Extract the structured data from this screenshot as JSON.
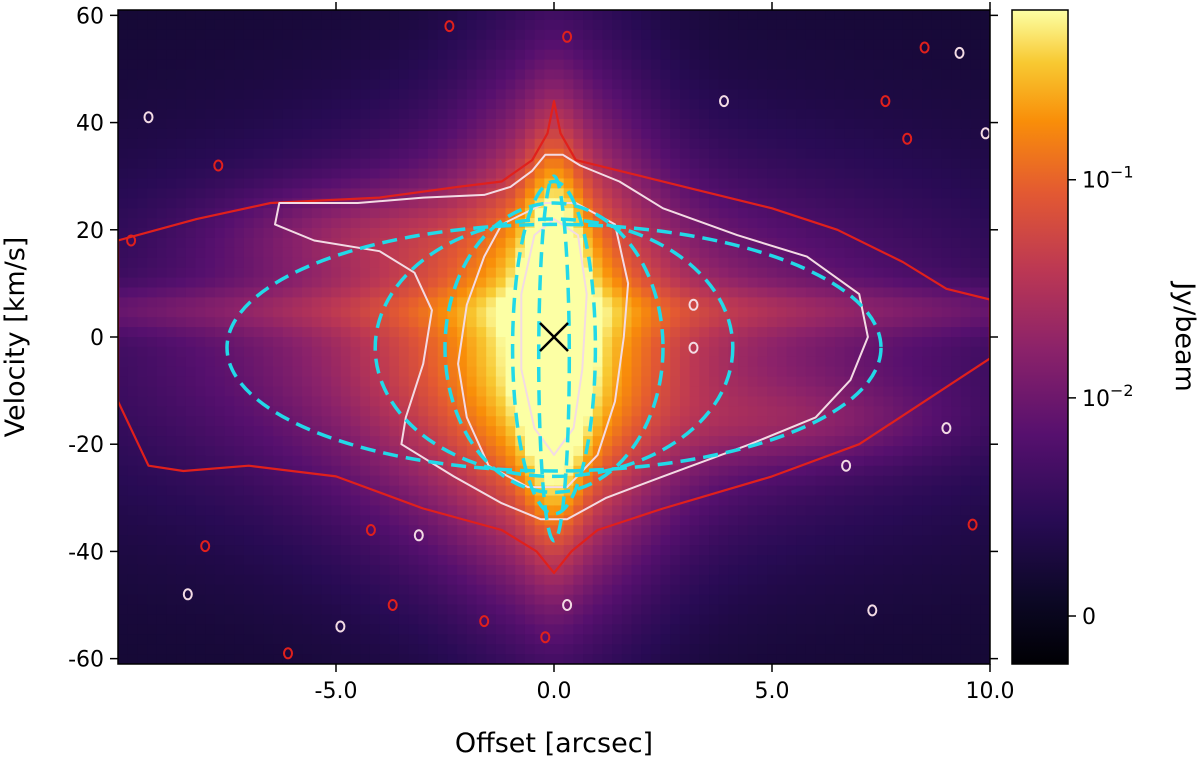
{
  "chart_data": {
    "type": "heatmap",
    "title": "",
    "xlabel": "Offset [arcsec]",
    "ylabel": "Velocity [km/s]",
    "xlim": [
      -10,
      10
    ],
    "ylim": [
      -61,
      61
    ],
    "x_ticks": [
      {
        "value": -5,
        "label": "-5.0"
      },
      {
        "value": 0,
        "label": "0.0"
      },
      {
        "value": 5,
        "label": "5.0"
      },
      {
        "value": 10,
        "label": "10.0"
      }
    ],
    "y_ticks": [
      {
        "value": 60,
        "label": "60"
      },
      {
        "value": 40,
        "label": "40"
      },
      {
        "value": 20,
        "label": "20"
      },
      {
        "value": 0,
        "label": "0"
      },
      {
        "value": -20,
        "label": "-20"
      },
      {
        "value": -40,
        "label": "-40"
      },
      {
        "value": -60,
        "label": "-60"
      }
    ],
    "colorbar": {
      "label": "Jy/beam",
      "scale": "symlog",
      "colormap": "inferno",
      "ticks": [
        {
          "value": 0.1,
          "label": "10",
          "exponent": "−1"
        },
        {
          "value": 0.01,
          "label": "10",
          "exponent": "−2"
        },
        {
          "value": 0,
          "label": "0"
        }
      ]
    },
    "center_marker": {
      "x": 0,
      "y": 0,
      "symbol": "x",
      "color": "#000000"
    },
    "emission_components": [
      {
        "x": 0,
        "y": 0,
        "sx": 0.45,
        "sy": 20,
        "amp": 1.0
      },
      {
        "x": 0,
        "y": 0,
        "sx": 1.3,
        "sy": 27,
        "amp": 0.5
      },
      {
        "x": -0.8,
        "y": -5,
        "sx": 2.4,
        "sy": 22,
        "amp": 0.32
      },
      {
        "x": 0,
        "y": -2,
        "sx": 4.8,
        "sy": 15,
        "amp": 0.2
      },
      {
        "x": 0,
        "y": 5,
        "sx": 10,
        "sy": 3,
        "amp": 0.13
      },
      {
        "x": -4.2,
        "y": 19,
        "sx": 2.2,
        "sy": 6,
        "amp": 0.14
      },
      {
        "x": 5.5,
        "y": -16,
        "sx": 2.2,
        "sy": 5,
        "amp": 0.12
      },
      {
        "x": 0,
        "y": 0,
        "sx": 6.5,
        "sy": 22,
        "amp": 0.11
      }
    ],
    "model_ellipses": [
      {
        "cx": 0,
        "cy": -2,
        "rx": 7.5,
        "ry": 23,
        "color": "#22d9e8",
        "style": "dashed"
      },
      {
        "cx": 0,
        "cy": -2,
        "rx": 4.1,
        "ry": 24,
        "color": "#22d9e8",
        "style": "dashed"
      },
      {
        "cx": 0,
        "cy": -2,
        "rx": 2.5,
        "ry": 27,
        "color": "#22d9e8",
        "style": "dashed"
      },
      {
        "cx": 0,
        "cy": -2,
        "rx": 0.95,
        "ry": 31,
        "color": "#22d9e8",
        "style": "dashed"
      },
      {
        "cx": 0,
        "cy": -4,
        "rx": 0.35,
        "ry": 34,
        "color": "#22d9e8",
        "style": "dashed"
      }
    ],
    "contours": {
      "outer_color": "#e0201c",
      "inner_color": "#f3dbe4",
      "outer": [
        [
          -10,
          18
        ],
        [
          -8.2,
          22
        ],
        [
          -6.5,
          25
        ],
        [
          -4,
          26
        ],
        [
          -2.2,
          28
        ],
        [
          -1.2,
          29
        ],
        [
          -0.5,
          33
        ],
        [
          -0.15,
          38
        ],
        [
          0,
          44
        ],
        [
          0.15,
          38
        ],
        [
          0.5,
          33
        ],
        [
          1.5,
          31
        ],
        [
          3,
          28
        ],
        [
          5,
          24
        ],
        [
          6.5,
          20
        ],
        [
          8,
          14
        ],
        [
          9,
          9
        ],
        [
          10,
          7
        ],
        [
          10,
          -4
        ],
        [
          8.5,
          -12
        ],
        [
          7,
          -20
        ],
        [
          5,
          -26
        ],
        [
          2.5,
          -32
        ],
        [
          1,
          -36
        ],
        [
          0.4,
          -40
        ],
        [
          0,
          -44
        ],
        [
          -0.4,
          -40
        ],
        [
          -1.2,
          -36
        ],
        [
          -3,
          -32
        ],
        [
          -5,
          -26
        ],
        [
          -7,
          -24
        ],
        [
          -8.5,
          -25
        ],
        [
          -9.3,
          -24
        ],
        [
          -10,
          -12
        ]
      ],
      "inner": [
        [
          [
            -6.3,
            25
          ],
          [
            -4.5,
            25
          ],
          [
            -3,
            26
          ],
          [
            -1.6,
            26.5
          ],
          [
            -1.0,
            28
          ],
          [
            -0.5,
            31
          ],
          [
            -0.2,
            34
          ],
          [
            0.2,
            34
          ],
          [
            0.6,
            32
          ],
          [
            1.5,
            29
          ],
          [
            2.5,
            24
          ],
          [
            4.2,
            19
          ],
          [
            5.8,
            15
          ],
          [
            7.0,
            8
          ],
          [
            7.2,
            0
          ],
          [
            6.8,
            -8
          ],
          [
            6.0,
            -15
          ],
          [
            4.5,
            -20
          ],
          [
            2.5,
            -26
          ],
          [
            1.2,
            -30
          ],
          [
            0.3,
            -34
          ],
          [
            -0.3,
            -34
          ],
          [
            -1.2,
            -31
          ],
          [
            -2.3,
            -26
          ],
          [
            -3.5,
            -20
          ],
          [
            -3.4,
            -15
          ],
          [
            -3.0,
            -5
          ],
          [
            -2.8,
            5
          ],
          [
            -3.2,
            12
          ],
          [
            -4,
            16
          ],
          [
            -5.5,
            18
          ],
          [
            -6.4,
            21
          ]
        ],
        [
          [
            -1.2,
            21
          ],
          [
            -0.2,
            25
          ],
          [
            0.5,
            25
          ],
          [
            1.4,
            21
          ],
          [
            1.7,
            10
          ],
          [
            1.6,
            0
          ],
          [
            1.4,
            -12
          ],
          [
            1.0,
            -22
          ],
          [
            0.3,
            -28
          ],
          [
            -0.6,
            -28
          ],
          [
            -1.5,
            -24
          ],
          [
            -2.0,
            -15
          ],
          [
            -2.2,
            -5
          ],
          [
            -2.0,
            6
          ],
          [
            -1.6,
            15
          ]
        ],
        [
          [
            -0.45,
            19
          ],
          [
            0,
            22
          ],
          [
            0.55,
            19
          ],
          [
            0.75,
            8
          ],
          [
            0.65,
            -6
          ],
          [
            0.45,
            -17
          ],
          [
            0,
            -22
          ],
          [
            -0.45,
            -17
          ],
          [
            -0.75,
            -6
          ],
          [
            -0.75,
            8
          ]
        ]
      ],
      "blobs": [
        {
          "x": 8.5,
          "y": 54,
          "color": "#e0201c"
        },
        {
          "x": 7.6,
          "y": 44,
          "color": "#e0201c"
        },
        {
          "x": 8.1,
          "y": 37,
          "color": "#e0201c"
        },
        {
          "x": -7.7,
          "y": 32,
          "color": "#e0201c"
        },
        {
          "x": -9.7,
          "y": 18,
          "color": "#e0201c"
        },
        {
          "x": -4.2,
          "y": -36,
          "color": "#e0201c"
        },
        {
          "x": -8.0,
          "y": -39,
          "color": "#e0201c"
        },
        {
          "x": -3.7,
          "y": -50,
          "color": "#e0201c"
        },
        {
          "x": -1.6,
          "y": -53,
          "color": "#e0201c"
        },
        {
          "x": -0.2,
          "y": -56,
          "color": "#e0201c"
        },
        {
          "x": 9.6,
          "y": -35,
          "color": "#e0201c"
        },
        {
          "x": -6.1,
          "y": -59,
          "color": "#e0201c"
        },
        {
          "x": -2.4,
          "y": 58,
          "color": "#e0201c"
        },
        {
          "x": 0.3,
          "y": 56,
          "color": "#e0201c"
        },
        {
          "x": 9.3,
          "y": 53,
          "color": "#f3dbe4"
        },
        {
          "x": 3.9,
          "y": 44,
          "color": "#f3dbe4"
        },
        {
          "x": -9.3,
          "y": 41,
          "color": "#f3dbe4"
        },
        {
          "x": 9.9,
          "y": 38,
          "color": "#f3dbe4"
        },
        {
          "x": -8.4,
          "y": -48,
          "color": "#f3dbe4"
        },
        {
          "x": -4.9,
          "y": -54,
          "color": "#f3dbe4"
        },
        {
          "x": 7.3,
          "y": -51,
          "color": "#f3dbe4"
        },
        {
          "x": 9.0,
          "y": -17,
          "color": "#f3dbe4"
        },
        {
          "x": 6.7,
          "y": -24,
          "color": "#f3dbe4"
        },
        {
          "x": -3.1,
          "y": -37,
          "color": "#f3dbe4"
        },
        {
          "x": 0.3,
          "y": -50,
          "color": "#f3dbe4"
        },
        {
          "x": 3.2,
          "y": -2,
          "color": "#f3dbe4"
        },
        {
          "x": 3.2,
          "y": 6,
          "color": "#f3dbe4"
        }
      ]
    }
  }
}
